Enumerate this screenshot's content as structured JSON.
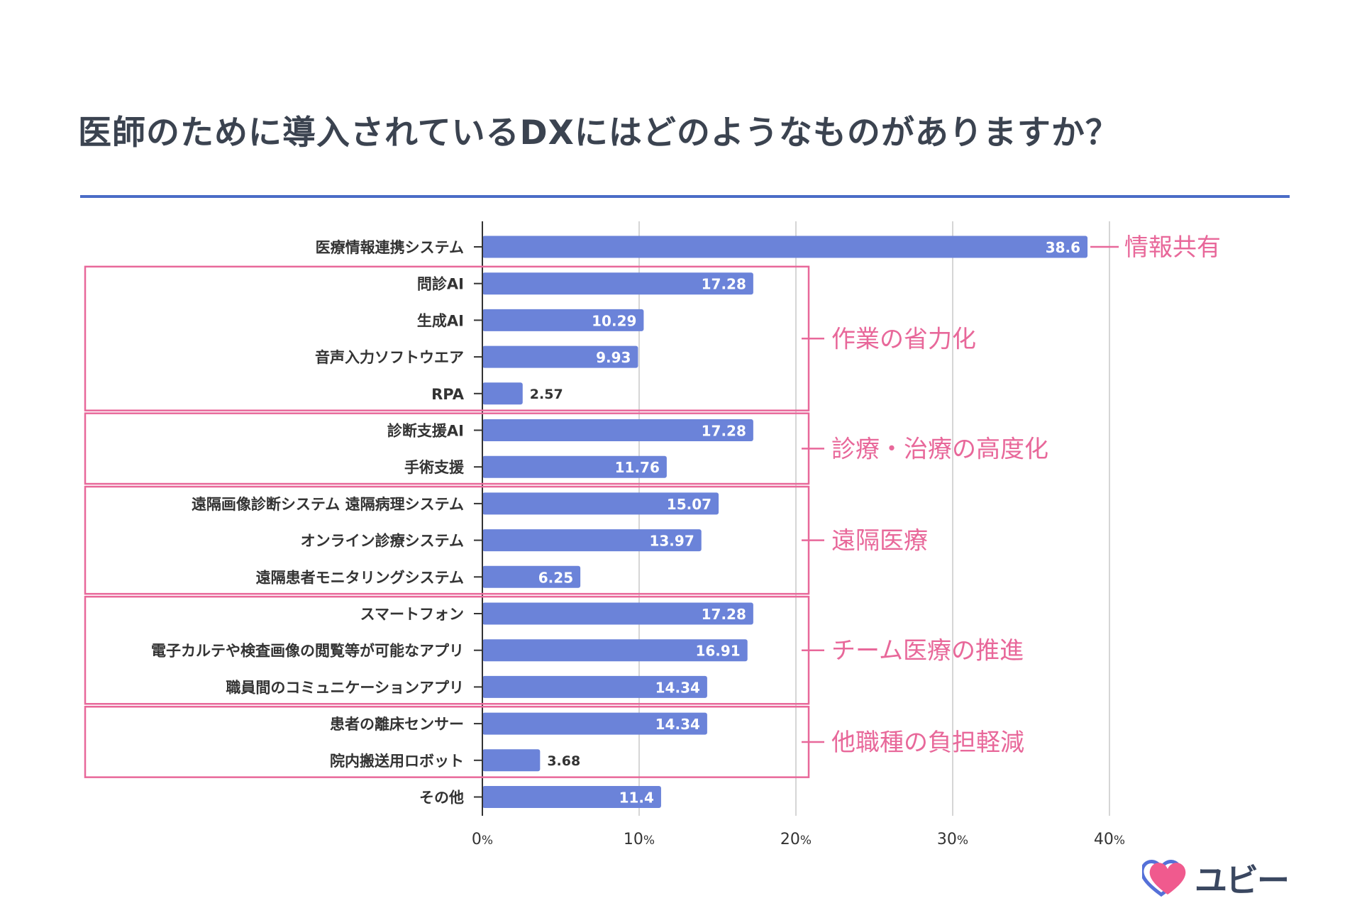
{
  "title": "医師のために導入されているDXにはどのようなものがありますか？",
  "chart_data": {
    "type": "bar",
    "orientation": "horizontal",
    "categories": [
      "医療情報連携システム",
      "問診AI",
      "生成AI",
      "音声入力ソフトウエア",
      "RPA",
      "診断支援AI",
      "手術支援",
      "遠隔画像診断システム 遠隔病理システム",
      "オンライン診療システム",
      "遠隔患者モニタリングシステム",
      "スマートフォン",
      "電子カルテや検査画像の閲覧等が可能なアプリ",
      "職員間のコミュニケーションアプリ",
      "患者の離床センサー",
      "院内搬送用ロボット",
      "その他"
    ],
    "values": [
      38.6,
      17.28,
      10.29,
      9.93,
      2.57,
      17.28,
      11.76,
      15.07,
      13.97,
      6.25,
      17.28,
      16.91,
      14.34,
      14.34,
      3.68,
      11.4
    ],
    "value_labels": [
      "38.6",
      "17.28",
      "10.29",
      "9.93",
      "2.57",
      "17.28",
      "11.76",
      "15.07",
      "13.97",
      "6.25",
      "17.28",
      "16.91",
      "14.34",
      "14.34",
      "3.68",
      "11.4"
    ],
    "xlim": [
      0,
      40
    ],
    "xticks": [
      {
        "num": "0",
        "unit": "%"
      },
      {
        "num": "10",
        "unit": "%"
      },
      {
        "num": "20",
        "unit": "%"
      },
      {
        "num": "30",
        "unit": "%"
      },
      {
        "num": "40",
        "unit": "%"
      }
    ],
    "grid": true,
    "bar_color": "#6b83d9",
    "groups": [
      {
        "label": "情報共有",
        "first": 0,
        "last": 0,
        "boxed": false
      },
      {
        "label": "作業の省力化",
        "first": 1,
        "last": 4,
        "boxed": true
      },
      {
        "label": "診療・治療の高度化",
        "first": 5,
        "last": 6,
        "boxed": true
      },
      {
        "label": "遠隔医療",
        "first": 7,
        "last": 9,
        "boxed": true
      },
      {
        "label": "チーム医療の推進",
        "first": 10,
        "last": 12,
        "boxed": true
      },
      {
        "label": "他職種の負担軽減",
        "first": 13,
        "last": 14,
        "boxed": true
      }
    ],
    "group_color": "#e8689a"
  },
  "logo": {
    "text": "ユビー",
    "heart_color": "#f05a8e",
    "outline_color": "#5570d8"
  }
}
